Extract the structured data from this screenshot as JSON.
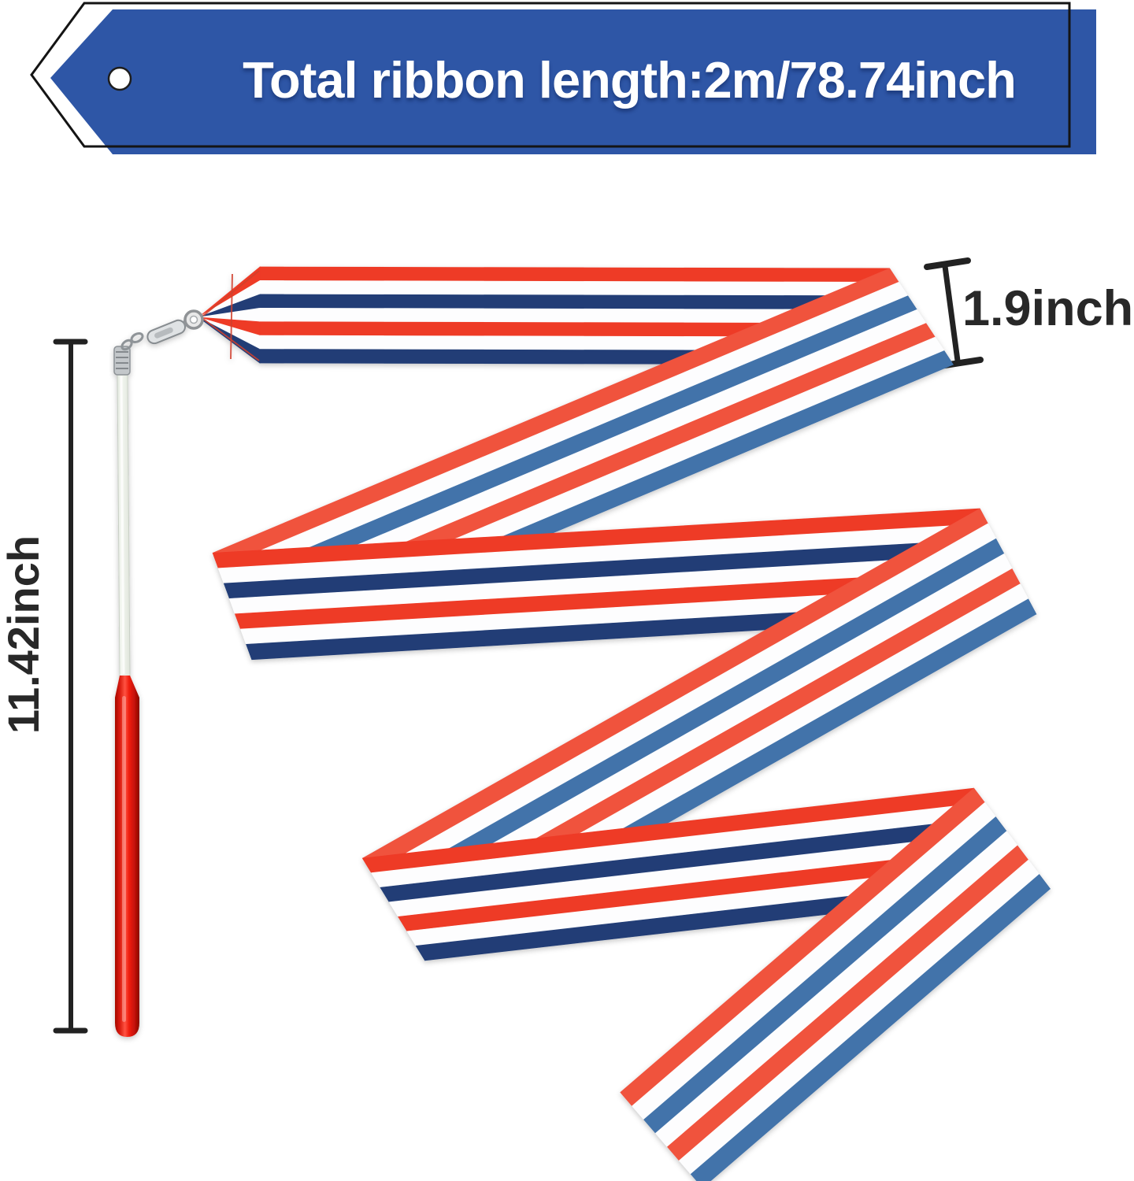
{
  "banner": {
    "title": "Total ribbon length:2m/78.74inch"
  },
  "annotations": {
    "ribbon_width": "1.9inch",
    "stick_length": "11.42inch"
  },
  "colors": {
    "banner_blue": "#2e56a6",
    "banner_outline": "#141414",
    "stripe_red": "#ee3a26",
    "stripe_red_sheen": "#f0523e",
    "stripe_navy": "#223e76",
    "stripe_blue_sheen": "#4273aa",
    "stripe_white": "#fdfdfe",
    "handle_red": "#e6170c",
    "shaft_white": "#edf1ea",
    "metal_gray": "#8f9498",
    "dimension_line": "#222222",
    "stitch_red": "#d0402e"
  }
}
